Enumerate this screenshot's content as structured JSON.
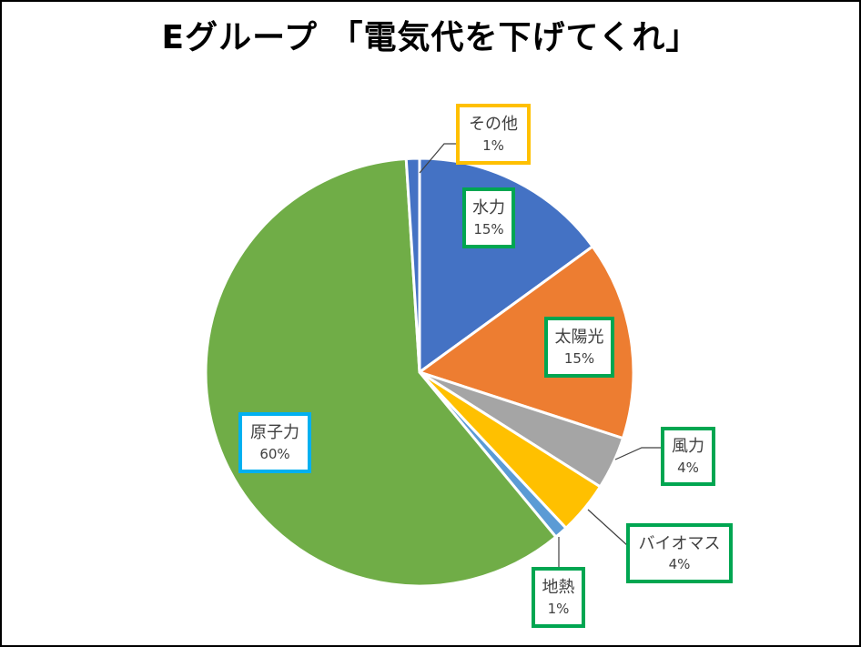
{
  "chart_data": {
    "type": "pie",
    "title": "Eグループ 「電気代を下げてくれ」",
    "slices": [
      {
        "label": "水力",
        "value": 15,
        "pct": "15%",
        "color": "#4472c4",
        "label_border": "#00a651"
      },
      {
        "label": "太陽光",
        "value": 15,
        "pct": "15%",
        "color": "#ed7d31",
        "label_border": "#00a651"
      },
      {
        "label": "風力",
        "value": 4,
        "pct": "4%",
        "color": "#a5a5a5",
        "label_border": "#00a651"
      },
      {
        "label": "バイオマス",
        "value": 4,
        "pct": "4%",
        "color": "#ffc000",
        "label_border": "#00a651"
      },
      {
        "label": "地熱",
        "value": 1,
        "pct": "1%",
        "color": "#5b9bd5",
        "label_border": "#00a651"
      },
      {
        "label": "原子力",
        "value": 60,
        "pct": "60%",
        "color": "#70ad47",
        "label_border": "#00b0f0"
      },
      {
        "label": "その他",
        "value": 1,
        "pct": "1%",
        "color": "#4472c4",
        "label_border": "#ffc000"
      }
    ]
  }
}
